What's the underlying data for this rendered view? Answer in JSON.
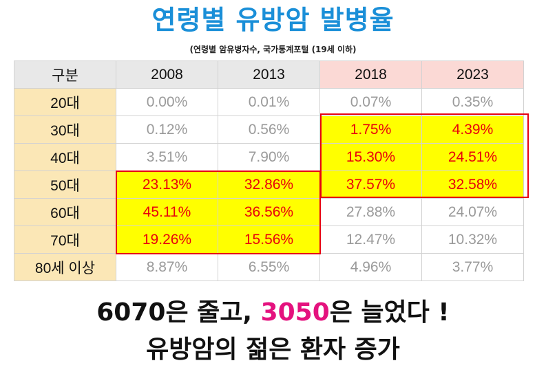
{
  "title": "연령별 유방암 발병율",
  "source": "(연령별 암유병자수, 국가통계포털 (19세 이하)",
  "chart_data": {
    "type": "table",
    "corner_label": "구분",
    "columns": [
      "2008",
      "2013",
      "2018",
      "2023"
    ],
    "rows": [
      {
        "label": "20대",
        "values": [
          "0.00%",
          "0.01%",
          "0.07%",
          "0.35%"
        ]
      },
      {
        "label": "30대",
        "values": [
          "0.12%",
          "0.56%",
          "1.75%",
          "4.39%"
        ]
      },
      {
        "label": "40대",
        "values": [
          "3.51%",
          "7.90%",
          "15.30%",
          "24.51%"
        ]
      },
      {
        "label": "50대",
        "values": [
          "23.13%",
          "32.86%",
          "37.57%",
          "32.58%"
        ]
      },
      {
        "label": "60대",
        "values": [
          "45.11%",
          "36.56%",
          "27.88%",
          "24.07%"
        ]
      },
      {
        "label": "70대",
        "values": [
          "19.26%",
          "15.56%",
          "12.47%",
          "10.32%"
        ]
      },
      {
        "label": "80세 이상",
        "values": [
          "8.87%",
          "6.55%",
          "4.96%",
          "3.77%"
        ]
      }
    ],
    "highlighted": [
      [
        1,
        2
      ],
      [
        1,
        3
      ],
      [
        2,
        2
      ],
      [
        2,
        3
      ],
      [
        3,
        0
      ],
      [
        3,
        1
      ],
      [
        3,
        2
      ],
      [
        3,
        3
      ],
      [
        4,
        0
      ],
      [
        4,
        1
      ],
      [
        5,
        0
      ],
      [
        5,
        1
      ]
    ],
    "highlight_color": "#ffff00",
    "highlight_text_color": "#e8000c",
    "box_color": "#e60012"
  },
  "headline": {
    "line1_part1": "6070은 줄고, ",
    "line1_highlight": "3050",
    "line1_part2": "은 늘었다 !",
    "line2": "유방암의 젊은 환자 증가",
    "highlight_color": "#e4127e"
  }
}
